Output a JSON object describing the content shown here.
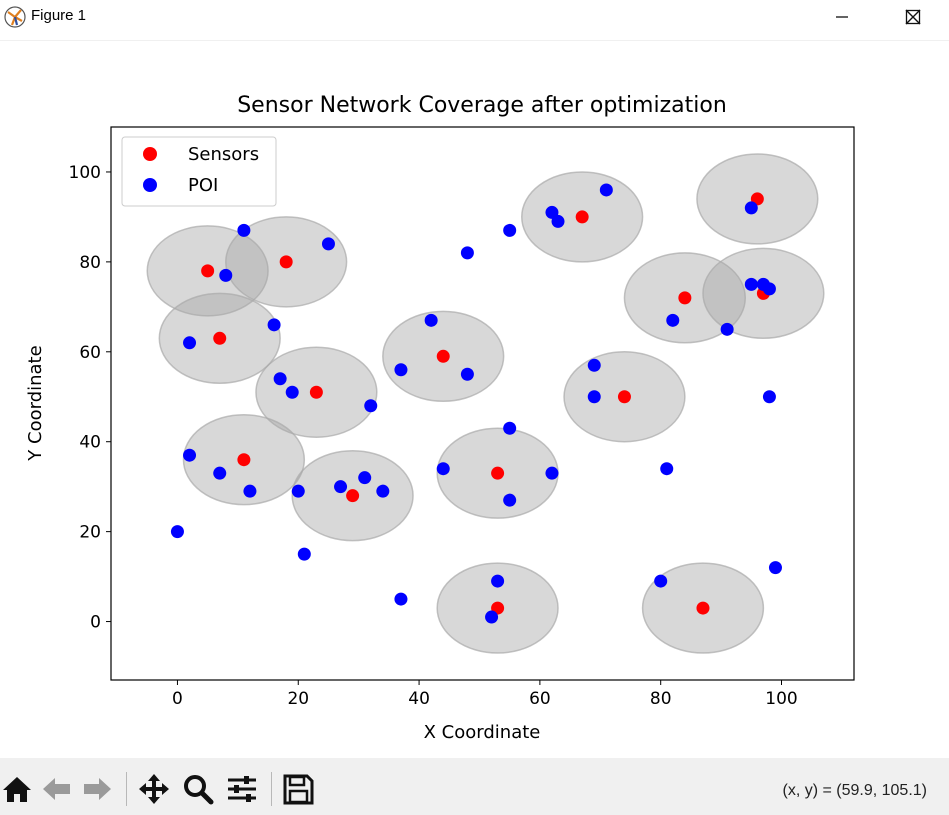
{
  "window": {
    "title": "Figure 1",
    "buttons": {
      "minimize_icon": "minimize-icon",
      "maximize_icon": "maximize-icon",
      "close_icon": "close-icon"
    }
  },
  "toolbar": {
    "icons": [
      "home-icon",
      "back-icon",
      "forward-icon",
      "pan-icon",
      "zoom-icon",
      "configure-subplots-icon",
      "save-icon"
    ],
    "coords_text": "(x, y) = (59.9, 105.1)"
  },
  "chart_data": {
    "type": "scatter",
    "title": "Sensor Network Coverage after optimization",
    "xlabel": "X Coordinate",
    "ylabel": "Y Coordinate",
    "xlim": [
      -11,
      112
    ],
    "ylim": [
      -13,
      110
    ],
    "xticks": [
      0,
      20,
      40,
      60,
      80,
      100
    ],
    "yticks": [
      0,
      20,
      40,
      60,
      80,
      100
    ],
    "grid": false,
    "legend_position": "top-left",
    "coverage_radius": 10,
    "coverage_color": "#a9a9a9",
    "series": [
      {
        "name": "Sensors",
        "color": "#ff0000",
        "points": [
          [
            5,
            78
          ],
          [
            18,
            80
          ],
          [
            7,
            63
          ],
          [
            23,
            51
          ],
          [
            11,
            36
          ],
          [
            29,
            28
          ],
          [
            44,
            59
          ],
          [
            53,
            33
          ],
          [
            53,
            3
          ],
          [
            67,
            90
          ],
          [
            74,
            50
          ],
          [
            84,
            72
          ],
          [
            87,
            3
          ],
          [
            96,
            94
          ],
          [
            97,
            73
          ]
        ]
      },
      {
        "name": "POI",
        "color": "#0000ff",
        "points": [
          [
            11,
            87
          ],
          [
            25,
            84
          ],
          [
            8,
            77
          ],
          [
            16,
            66
          ],
          [
            2,
            62
          ],
          [
            17,
            54
          ],
          [
            19,
            51
          ],
          [
            32,
            48
          ],
          [
            2,
            37
          ],
          [
            7,
            33
          ],
          [
            12,
            29
          ],
          [
            20,
            29
          ],
          [
            27,
            30
          ],
          [
            31,
            32
          ],
          [
            34,
            29
          ],
          [
            21,
            15
          ],
          [
            0,
            20
          ],
          [
            37,
            5
          ],
          [
            48,
            82
          ],
          [
            55,
            87
          ],
          [
            42,
            67
          ],
          [
            37,
            56
          ],
          [
            48,
            55
          ],
          [
            55,
            43
          ],
          [
            44,
            34
          ],
          [
            55,
            27
          ],
          [
            62,
            33
          ],
          [
            53,
            9
          ],
          [
            52,
            1
          ],
          [
            62,
            91
          ],
          [
            63,
            89
          ],
          [
            71,
            96
          ],
          [
            69,
            57
          ],
          [
            69,
            50
          ],
          [
            81,
            34
          ],
          [
            82,
            67
          ],
          [
            91,
            65
          ],
          [
            95,
            75
          ],
          [
            97,
            75
          ],
          [
            98,
            74
          ],
          [
            95,
            92
          ],
          [
            98,
            50
          ],
          [
            80,
            9
          ],
          [
            99,
            12
          ]
        ]
      }
    ]
  }
}
